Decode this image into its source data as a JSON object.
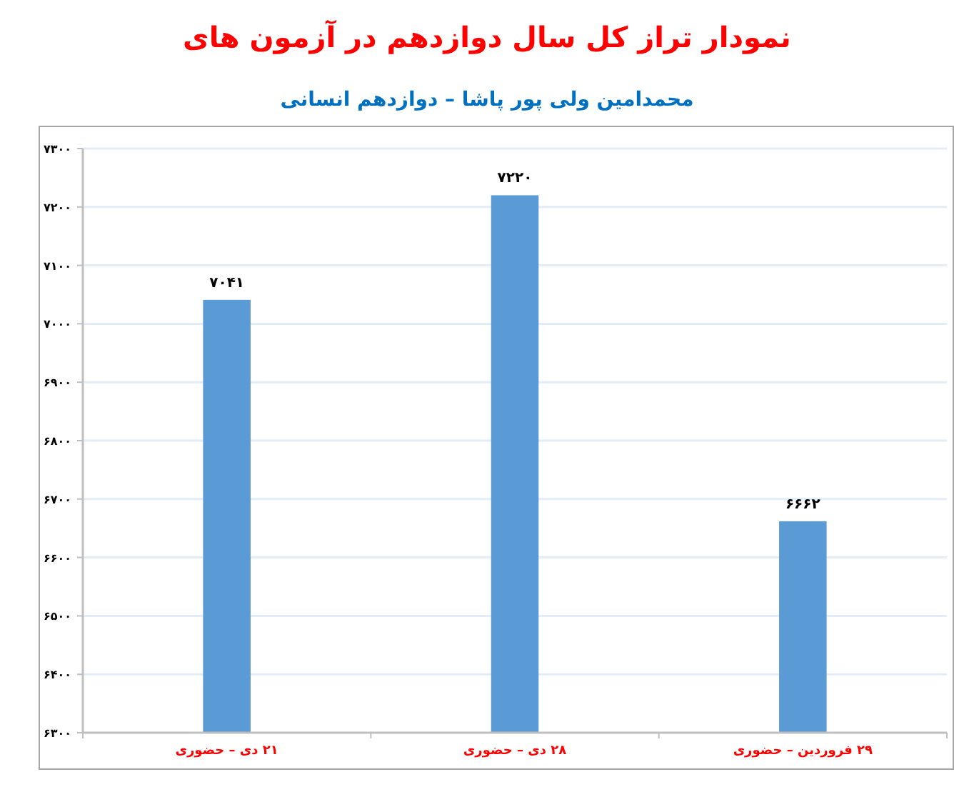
{
  "chart_data": {
    "type": "bar",
    "title": "نمودار تراز کل سال دوازدهم در آزمون های",
    "subtitle": "محمدامین ولی پور پاشا – دوازدهم انسانی",
    "categories": [
      "۲۱ دی – حضوری",
      "۲۸ دی – حضوری",
      "۲۹ فروردین – حضوری"
    ],
    "values": [
      7041,
      7220,
      6662
    ],
    "value_labels": [
      "۷۰۴۱",
      "۷۲۲۰",
      "۶۶۶۲"
    ],
    "color": "#5b9bd5",
    "ylim": [
      6300,
      7300
    ],
    "yticks": [
      {
        "value": 6300,
        "label": "۶۳۰۰"
      },
      {
        "value": 6400,
        "label": "۶۴۰۰"
      },
      {
        "value": 6500,
        "label": "۶۵۰۰"
      },
      {
        "value": 6600,
        "label": "۶۶۰۰"
      },
      {
        "value": 6700,
        "label": "۶۷۰۰"
      },
      {
        "value": 6800,
        "label": "۶۸۰۰"
      },
      {
        "value": 6900,
        "label": "۶۹۰۰"
      },
      {
        "value": 7000,
        "label": "۷۰۰۰"
      },
      {
        "value": 7100,
        "label": "۷۱۰۰"
      },
      {
        "value": 7200,
        "label": "۷۲۰۰"
      },
      {
        "value": 7300,
        "label": "۷۳۰۰"
      }
    ],
    "grid": "y"
  }
}
